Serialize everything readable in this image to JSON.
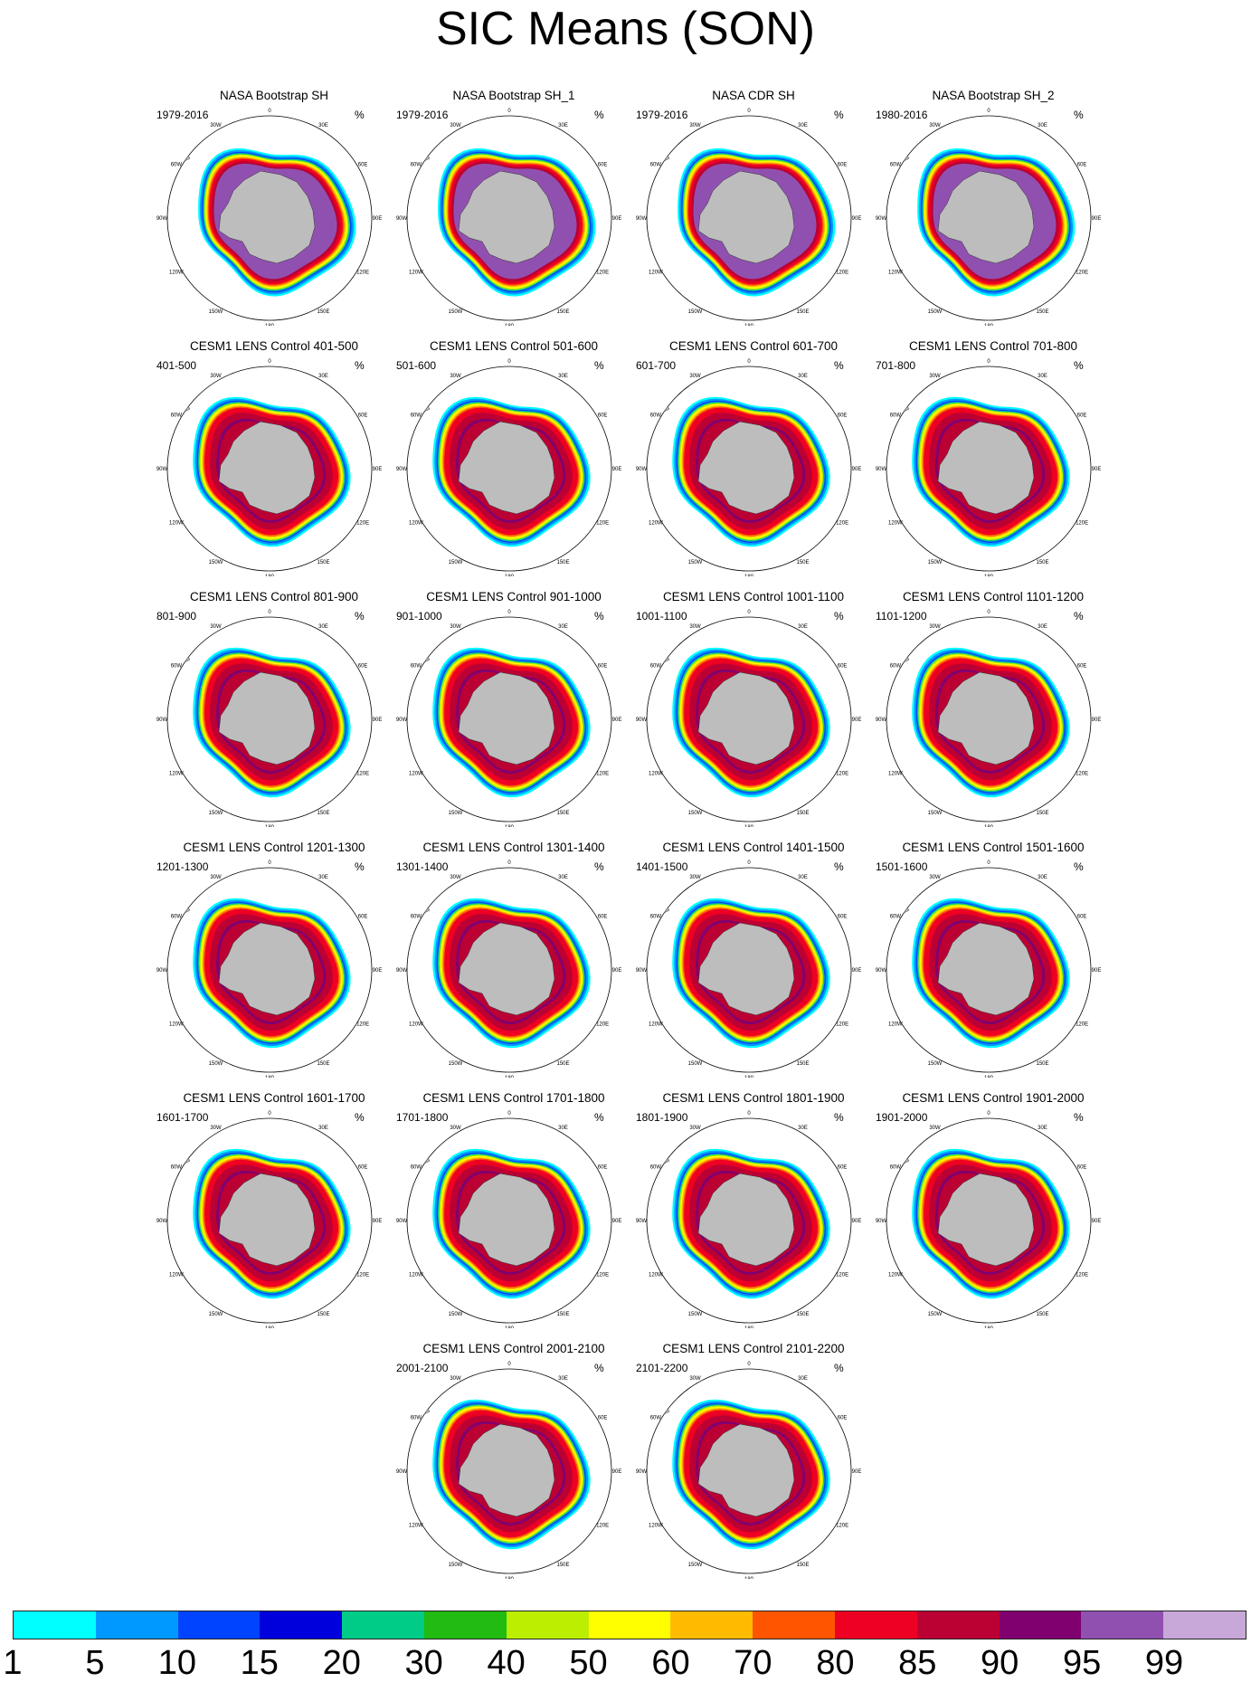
{
  "title": "SIC Means (SON)",
  "unit": "%",
  "longitude_labels": [
    "0",
    "30E",
    "60E",
    "90E",
    "120E",
    "150E",
    "180",
    "150W",
    "120W",
    "90W",
    "60W",
    "30W"
  ],
  "panels": [
    {
      "title": "NASA Bootstrap SH",
      "period": "1979-2016",
      "style": "obs"
    },
    {
      "title": "NASA Bootstrap SH_1",
      "period": "1979-2016",
      "style": "obs"
    },
    {
      "title": "NASA CDR SH",
      "period": "1979-2016",
      "style": "obs"
    },
    {
      "title": "NASA Bootstrap SH_2",
      "period": "1980-2016",
      "style": "obs"
    },
    {
      "title": "CESM1 LENS Control 401-500",
      "period": "401-500",
      "style": "model"
    },
    {
      "title": "CESM1 LENS Control 501-600",
      "period": "501-600",
      "style": "model"
    },
    {
      "title": "CESM1 LENS Control 601-700",
      "period": "601-700",
      "style": "model"
    },
    {
      "title": "CESM1 LENS Control 701-800",
      "period": "701-800",
      "style": "model"
    },
    {
      "title": "CESM1 LENS Control 801-900",
      "period": "801-900",
      "style": "model"
    },
    {
      "title": "CESM1 LENS Control 901-1000",
      "period": "901-1000",
      "style": "model"
    },
    {
      "title": "CESM1 LENS Control 1001-1100",
      "period": "1001-1100",
      "style": "model"
    },
    {
      "title": "CESM1 LENS Control 1101-1200",
      "period": "1101-1200",
      "style": "model"
    },
    {
      "title": "CESM1 LENS Control 1201-1300",
      "period": "1201-1300",
      "style": "model"
    },
    {
      "title": "CESM1 LENS Control 1301-1400",
      "period": "1301-1400",
      "style": "model"
    },
    {
      "title": "CESM1 LENS Control 1401-1500",
      "period": "1401-1500",
      "style": "model"
    },
    {
      "title": "CESM1 LENS Control 1501-1600",
      "period": "1501-1600",
      "style": "model"
    },
    {
      "title": "CESM1 LENS Control 1601-1700",
      "period": "1601-1700",
      "style": "model"
    },
    {
      "title": "CESM1 LENS Control 1701-1800",
      "period": "1701-1800",
      "style": "model"
    },
    {
      "title": "CESM1 LENS Control 1801-1900",
      "period": "1801-1900",
      "style": "model"
    },
    {
      "title": "CESM1 LENS Control 1901-2000",
      "period": "1901-2000",
      "style": "model"
    },
    {
      "title": "CESM1 LENS Control 2001-2100",
      "period": "2001-2100",
      "style": "model"
    },
    {
      "title": "CESM1 LENS Control 2101-2200",
      "period": "2101-2200",
      "style": "model"
    }
  ],
  "colorbar": {
    "labels": [
      "1",
      "5",
      "10",
      "15",
      "20",
      "30",
      "40",
      "50",
      "60",
      "70",
      "80",
      "85",
      "90",
      "95",
      "99"
    ],
    "colors": [
      "#00ffff",
      "#0099ff",
      "#0044ff",
      "#0000dd",
      "#00cc88",
      "#22bb11",
      "#bbee00",
      "#ffff00",
      "#ffbb00",
      "#ff5500",
      "#ee0022",
      "#bb0033",
      "#800070",
      "#9050b0",
      "#c8a8d8"
    ]
  }
}
